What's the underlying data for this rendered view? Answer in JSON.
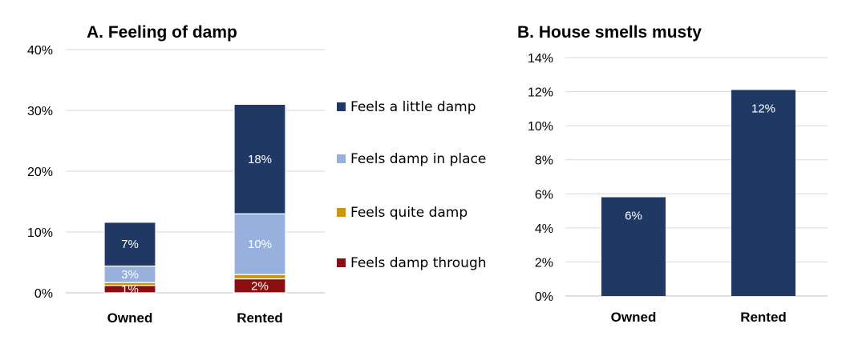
{
  "chart_data": [
    {
      "type": "bar",
      "stacked": true,
      "title": "A. Feeling of damp",
      "categories": [
        "Owned",
        "Rented"
      ],
      "ylim": [
        0,
        40
      ],
      "yticks": [
        "0%",
        "10%",
        "20%",
        "30%",
        "40%"
      ],
      "grid": true,
      "legend": "right",
      "series": [
        {
          "name": "Feels damp through",
          "color": "#8b0e12",
          "values": [
            1.2,
            2.3
          ],
          "labels": [
            "1%",
            "2%"
          ]
        },
        {
          "name": "Feels quite damp",
          "color": "#c8970e",
          "values": [
            0.5,
            0.7
          ],
          "labels": [
            "",
            ""
          ]
        },
        {
          "name": "Feels damp in place",
          "color": "#97b0dd",
          "values": [
            2.7,
            10.0
          ],
          "labels": [
            "3%",
            "10%"
          ]
        },
        {
          "name": "Feels a little damp",
          "color": "#1f3864",
          "values": [
            7.2,
            18.0
          ],
          "labels": [
            "7%",
            "18%"
          ]
        }
      ],
      "legend_order": [
        "Feels a little damp",
        "Feels damp in place",
        "Feels quite damp",
        "Feels damp through"
      ]
    },
    {
      "type": "bar",
      "title": "B. House smells musty",
      "categories": [
        "Owned",
        "Rented"
      ],
      "ylim": [
        0,
        14
      ],
      "yticks": [
        "0%",
        "2%",
        "4%",
        "6%",
        "8%",
        "10%",
        "12%",
        "14%"
      ],
      "grid": true,
      "series": [
        {
          "color": "#1f3864",
          "values": [
            5.8,
            12.1
          ],
          "labels": [
            "6%",
            "12%"
          ]
        }
      ]
    }
  ]
}
